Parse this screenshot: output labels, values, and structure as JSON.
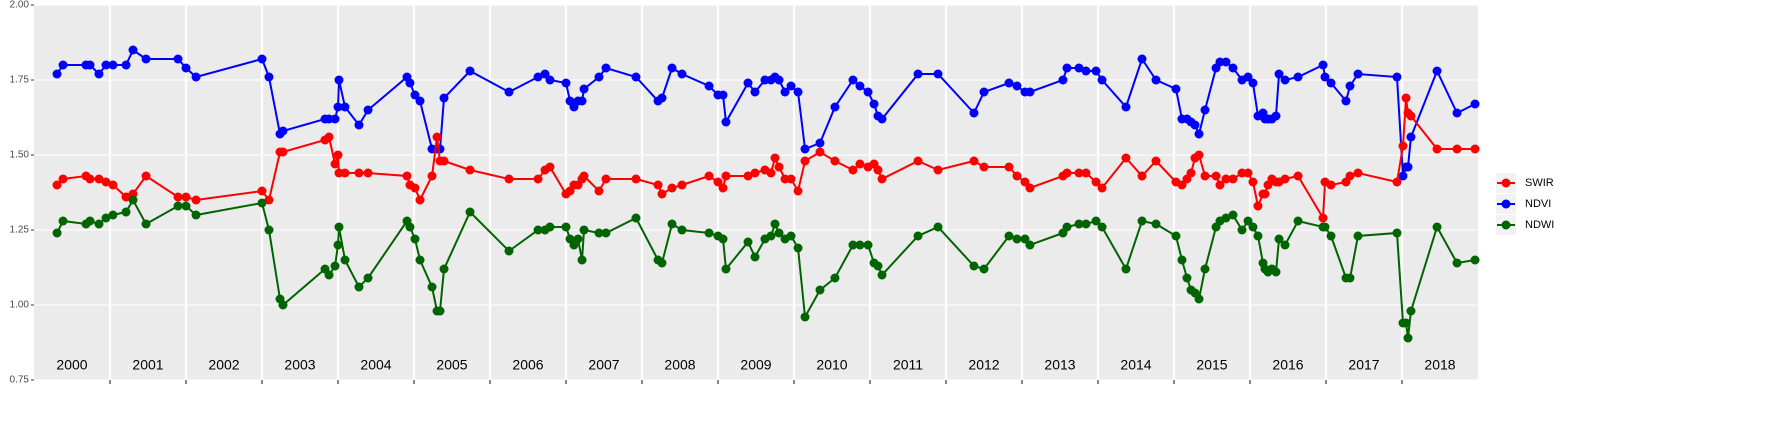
{
  "chart_data": {
    "type": "line",
    "x": [
      2000.303,
      2000.382,
      2000.684,
      2000.737,
      2000.855,
      2000.947,
      2001.039,
      2001.211,
      2001.303,
      2001.474,
      2001.895,
      2002.0,
      2002.132,
      2003.0,
      2003.092,
      2003.237,
      2003.276,
      2003.829,
      2003.882,
      2003.961,
      2004.0,
      2004.013,
      2004.092,
      2004.276,
      2004.395,
      2004.908,
      2004.947,
      2005.013,
      2005.079,
      2005.237,
      2005.303,
      2005.342,
      2005.395,
      2005.737,
      2006.25,
      2006.632,
      2006.724,
      2006.789,
      2007.0,
      2007.053,
      2007.105,
      2007.158,
      2007.211,
      2007.237,
      2007.434,
      2007.526,
      2007.921,
      2008.211,
      2008.263,
      2008.395,
      2008.526,
      2008.882,
      2009.0,
      2009.066,
      2009.105,
      2009.395,
      2009.487,
      2009.618,
      2009.697,
      2009.75,
      2009.803,
      2009.882,
      2009.961,
      2010.053,
      2010.145,
      2010.342,
      2010.539,
      2010.776,
      2010.868,
      2010.974,
      2011.053,
      2011.105,
      2011.158,
      2011.632,
      2011.895,
      2012.368,
      2012.5,
      2012.829,
      2012.934,
      2013.039,
      2013.105,
      2013.539,
      2013.592,
      2013.75,
      2013.842,
      2013.974,
      2014.053,
      2014.368,
      2014.579,
      2014.763,
      2015.026,
      2015.105,
      2015.171,
      2015.224,
      2015.276,
      2015.329,
      2015.408,
      2015.553,
      2015.605,
      2015.684,
      2015.776,
      2015.895,
      2015.974,
      2016.039,
      2016.105,
      2016.171,
      2016.197,
      2016.237,
      2016.289,
      2016.342,
      2016.382,
      2016.461,
      2016.632,
      2016.961,
      2016.987,
      2017.066,
      2017.263,
      2017.316,
      2017.421,
      2017.934,
      2018.013,
      2018.053,
      2018.079,
      2018.118,
      2018.461,
      2018.724,
      2018.961
    ],
    "series": [
      {
        "name": "SWIR",
        "color": "#ff0000",
        "values": [
          1.4,
          1.42,
          1.43,
          1.42,
          1.42,
          1.41,
          1.4,
          1.36,
          1.37,
          1.43,
          1.36,
          1.36,
          1.35,
          1.38,
          1.35,
          1.51,
          1.51,
          1.55,
          1.56,
          1.47,
          1.5,
          1.44,
          1.44,
          1.44,
          1.44,
          1.43,
          1.4,
          1.39,
          1.35,
          1.43,
          1.56,
          1.48,
          1.48,
          1.45,
          1.42,
          1.42,
          1.45,
          1.46,
          1.37,
          1.38,
          1.4,
          1.4,
          1.42,
          1.43,
          1.38,
          1.42,
          1.42,
          1.4,
          1.37,
          1.39,
          1.4,
          1.43,
          1.41,
          1.39,
          1.43,
          1.43,
          1.44,
          1.45,
          1.44,
          1.49,
          1.46,
          1.42,
          1.42,
          1.38,
          1.48,
          1.51,
          1.48,
          1.45,
          1.47,
          1.46,
          1.47,
          1.45,
          1.42,
          1.48,
          1.45,
          1.48,
          1.46,
          1.46,
          1.43,
          1.41,
          1.39,
          1.43,
          1.44,
          1.44,
          1.44,
          1.41,
          1.39,
          1.49,
          1.43,
          1.48,
          1.41,
          1.4,
          1.42,
          1.44,
          1.49,
          1.5,
          1.43,
          1.43,
          1.4,
          1.42,
          1.42,
          1.44,
          1.44,
          1.41,
          1.33,
          1.37,
          1.37,
          1.4,
          1.42,
          1.41,
          1.41,
          1.42,
          1.43,
          1.29,
          1.41,
          1.4,
          1.41,
          1.43,
          1.44,
          1.41,
          1.53,
          1.69,
          1.64,
          1.63,
          1.52,
          1.52,
          1.52
        ]
      },
      {
        "name": "NDVI",
        "color": "#0000ff",
        "values": [
          1.77,
          1.8,
          1.8,
          1.8,
          1.77,
          1.8,
          1.8,
          1.8,
          1.85,
          1.82,
          1.82,
          1.79,
          1.76,
          1.82,
          1.76,
          1.57,
          1.58,
          1.62,
          1.62,
          1.62,
          1.66,
          1.75,
          1.66,
          1.6,
          1.65,
          1.76,
          1.74,
          1.7,
          1.68,
          1.52,
          1.52,
          1.52,
          1.69,
          1.78,
          1.71,
          1.76,
          1.77,
          1.75,
          1.74,
          1.68,
          1.66,
          1.68,
          1.68,
          1.72,
          1.76,
          1.79,
          1.76,
          1.68,
          1.69,
          1.79,
          1.77,
          1.73,
          1.7,
          1.7,
          1.61,
          1.74,
          1.71,
          1.75,
          1.75,
          1.76,
          1.75,
          1.71,
          1.73,
          1.71,
          1.52,
          1.54,
          1.66,
          1.75,
          1.73,
          1.71,
          1.67,
          1.63,
          1.62,
          1.77,
          1.77,
          1.64,
          1.71,
          1.74,
          1.73,
          1.71,
          1.71,
          1.75,
          1.79,
          1.79,
          1.78,
          1.78,
          1.75,
          1.66,
          1.82,
          1.75,
          1.72,
          1.62,
          1.62,
          1.61,
          1.6,
          1.57,
          1.65,
          1.79,
          1.81,
          1.81,
          1.79,
          1.75,
          1.76,
          1.74,
          1.63,
          1.64,
          1.62,
          1.62,
          1.62,
          1.63,
          1.77,
          1.75,
          1.76,
          1.8,
          1.76,
          1.74,
          1.68,
          1.73,
          1.77,
          1.76,
          1.43,
          1.46,
          1.46,
          1.56,
          1.78,
          1.64,
          1.67
        ]
      },
      {
        "name": "NDWI",
        "color": "#006400",
        "values": [
          1.24,
          1.28,
          1.27,
          1.28,
          1.27,
          1.29,
          1.3,
          1.31,
          1.35,
          1.27,
          1.33,
          1.33,
          1.3,
          1.34,
          1.25,
          1.02,
          1.0,
          1.12,
          1.1,
          1.13,
          1.2,
          1.26,
          1.15,
          1.06,
          1.09,
          1.28,
          1.26,
          1.22,
          1.15,
          1.06,
          0.98,
          0.98,
          1.12,
          1.31,
          1.18,
          1.25,
          1.25,
          1.26,
          1.26,
          1.22,
          1.2,
          1.22,
          1.15,
          1.25,
          1.24,
          1.24,
          1.29,
          1.15,
          1.14,
          1.27,
          1.25,
          1.24,
          1.23,
          1.22,
          1.12,
          1.21,
          1.16,
          1.22,
          1.23,
          1.27,
          1.24,
          1.22,
          1.23,
          1.19,
          0.96,
          1.05,
          1.09,
          1.2,
          1.2,
          1.2,
          1.14,
          1.13,
          1.1,
          1.23,
          1.26,
          1.13,
          1.12,
          1.23,
          1.22,
          1.22,
          1.2,
          1.24,
          1.26,
          1.27,
          1.27,
          1.28,
          1.26,
          1.12,
          1.28,
          1.27,
          1.23,
          1.15,
          1.09,
          1.05,
          1.04,
          1.02,
          1.12,
          1.26,
          1.28,
          1.29,
          1.3,
          1.25,
          1.28,
          1.26,
          1.23,
          1.14,
          1.12,
          1.11,
          1.12,
          1.11,
          1.22,
          1.2,
          1.28,
          1.26,
          1.26,
          1.23,
          1.09,
          1.09,
          1.23,
          1.24,
          0.94,
          0.94,
          0.89,
          0.98,
          1.26,
          1.14,
          1.15
        ]
      }
    ],
    "xlim": [
      2000,
      2019
    ],
    "ylim": [
      0.75,
      2.0
    ],
    "yticks": [
      0.75,
      {
        "value": 1.0,
        "label": "1.00"
      },
      1.25,
      {
        "value": 1.5,
        "label": "1.50"
      },
      1.75,
      {
        "value": 2.0,
        "label": "2.00"
      }
    ],
    "xgrid": [
      2001,
      2002,
      2003,
      2004,
      2005,
      2006,
      2007,
      2008,
      2009,
      2010,
      2011,
      2012,
      2013,
      2014,
      2015,
      2016,
      2017,
      2018
    ],
    "year_labels": [
      {
        "value": 2000.5,
        "label": "2000"
      },
      {
        "value": 2001.5,
        "label": "2001"
      },
      {
        "value": 2002.5,
        "label": "2002"
      },
      {
        "value": 2003.5,
        "label": "2003"
      },
      {
        "value": 2004.5,
        "label": "2004"
      },
      {
        "value": 2005.5,
        "label": "2005"
      },
      {
        "value": 2006.5,
        "label": "2006"
      },
      {
        "value": 2007.5,
        "label": "2007"
      },
      {
        "value": 2008.5,
        "label": "2008"
      },
      {
        "value": 2009.5,
        "label": "2009"
      },
      {
        "value": 2010.5,
        "label": "2010"
      },
      {
        "value": 2011.5,
        "label": "2011"
      },
      {
        "value": 2012.5,
        "label": "2012"
      },
      {
        "value": 2013.5,
        "label": "2013"
      },
      {
        "value": 2014.5,
        "label": "2014"
      },
      {
        "value": 2015.5,
        "label": "2015"
      },
      {
        "value": 2016.5,
        "label": "2016"
      },
      {
        "value": 2017.5,
        "label": "2017"
      },
      {
        "value": 2018.5,
        "label": "2018"
      }
    ],
    "grid": true,
    "legend": "right"
  }
}
